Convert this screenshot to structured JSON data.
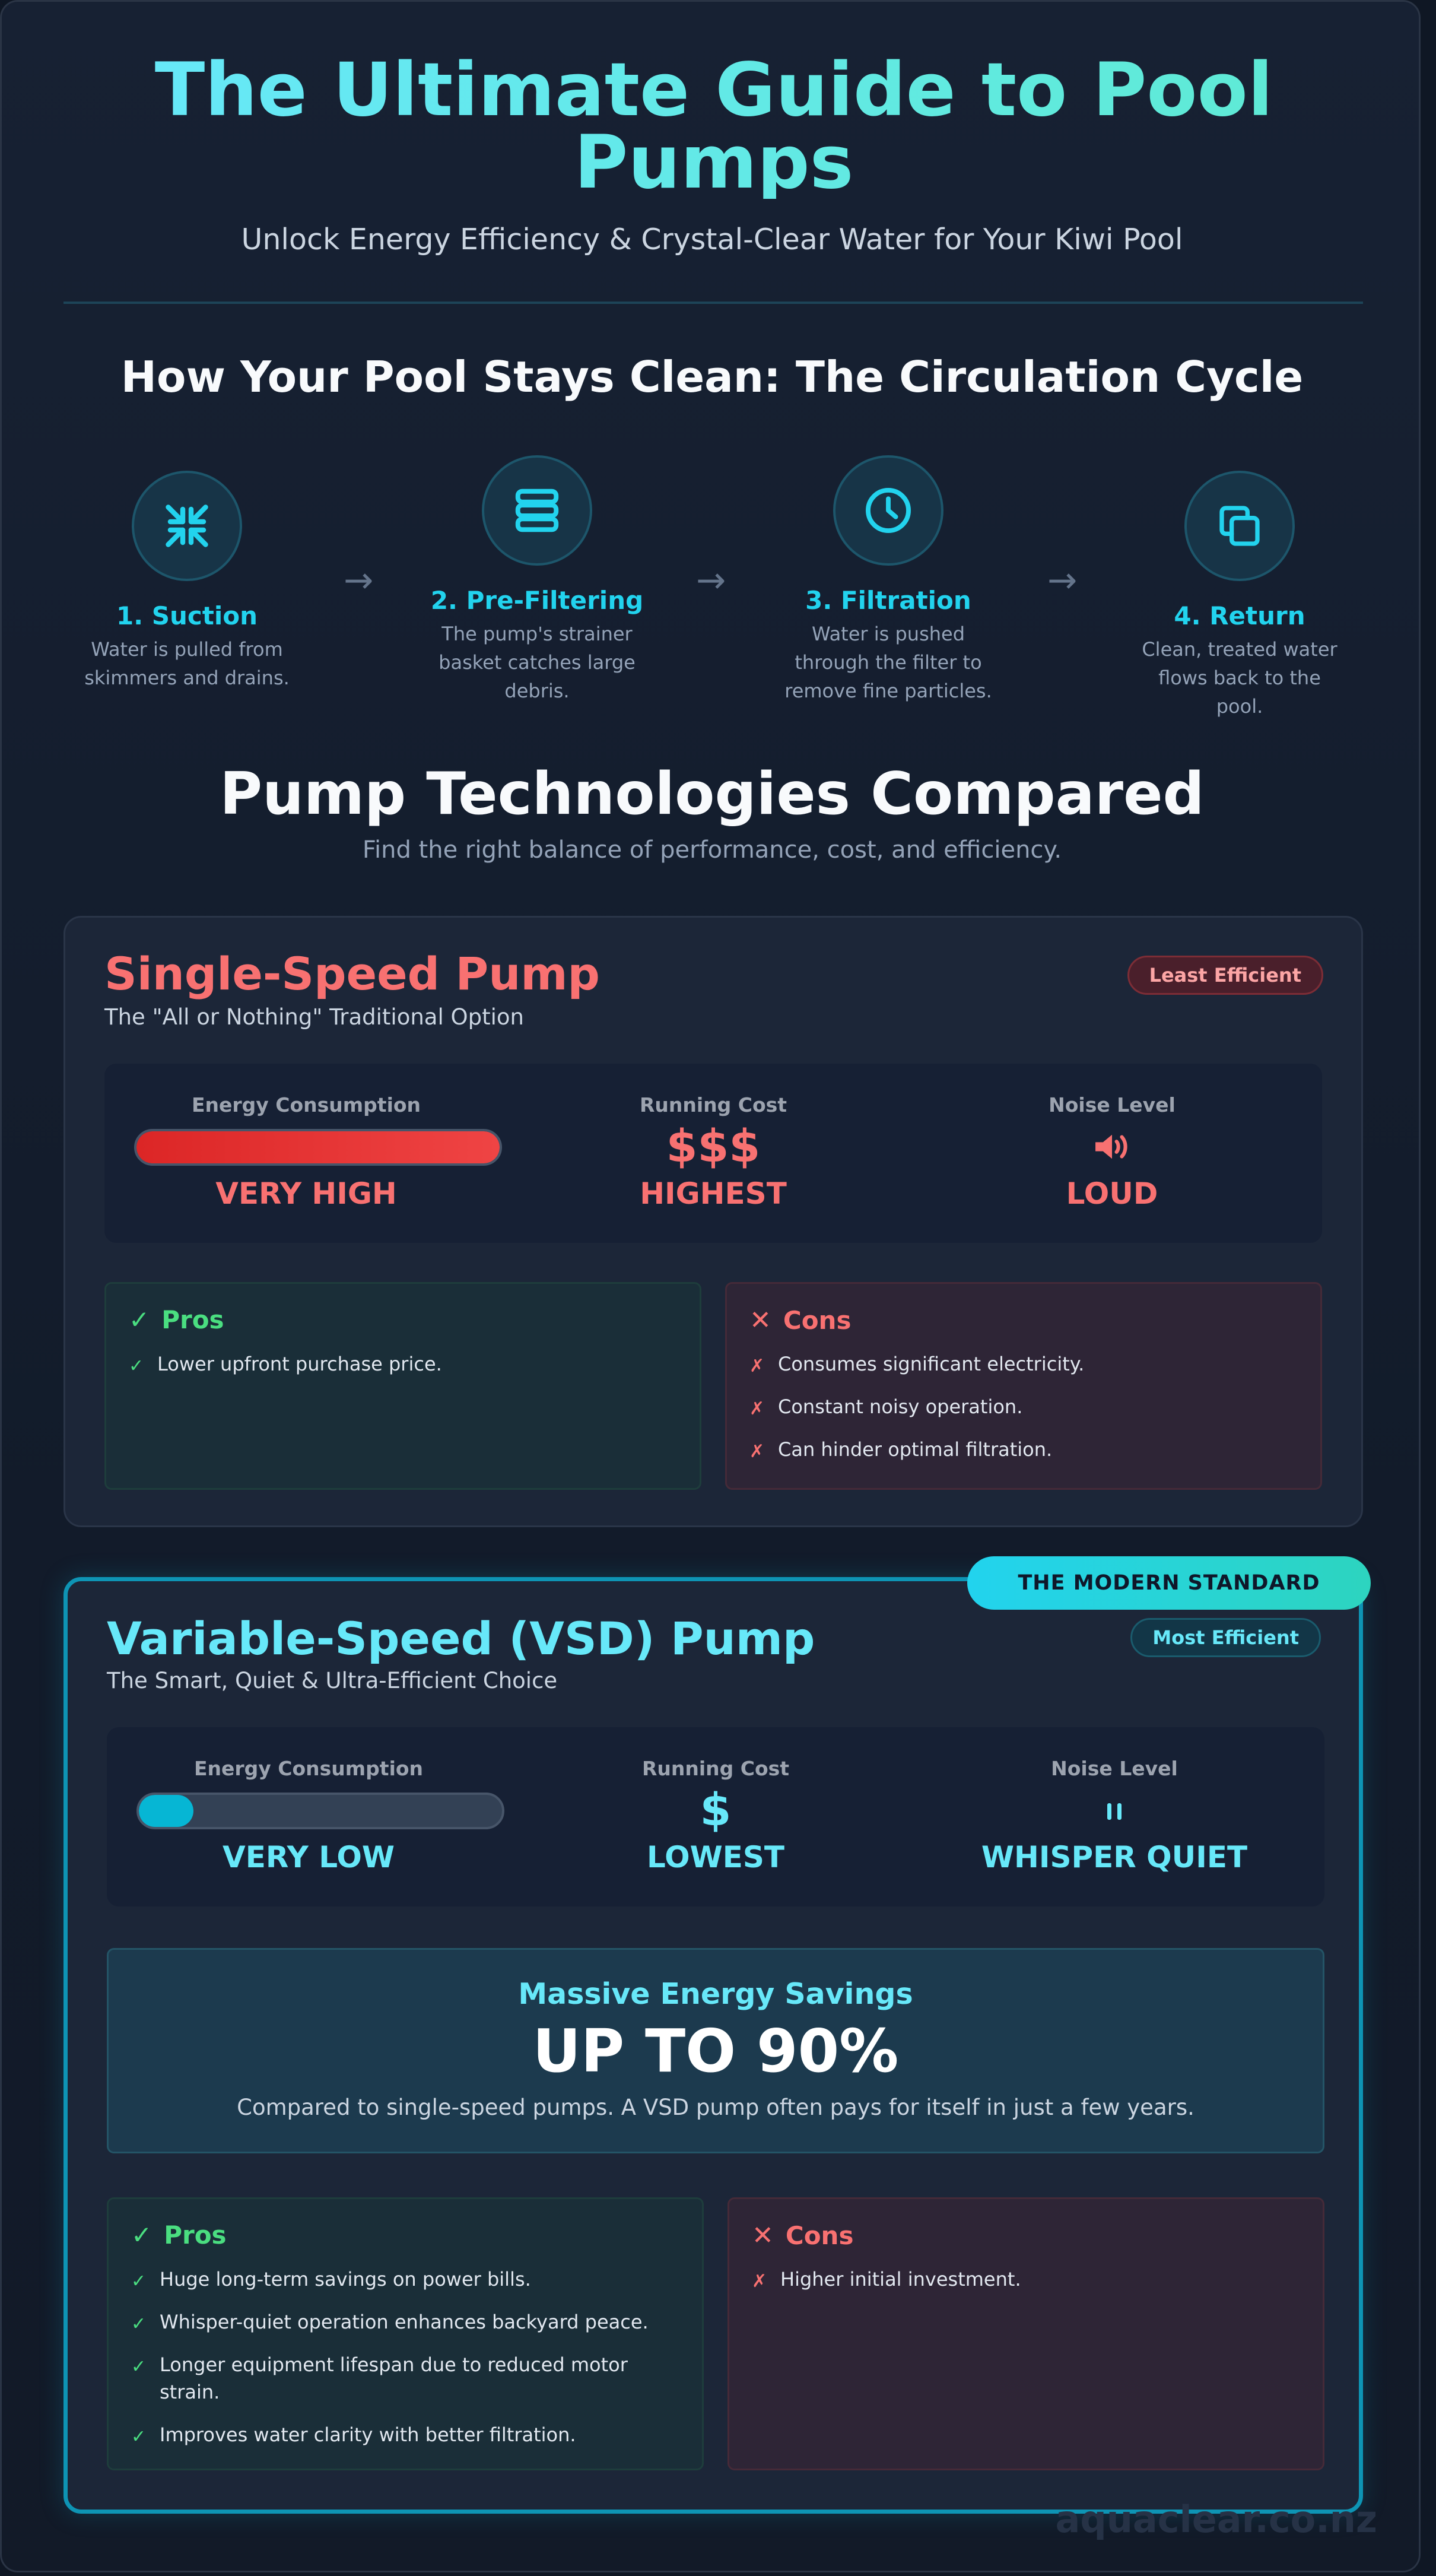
{
  "header": {
    "title": "The Ultimate Guide to Pool Pumps",
    "subtitle": "Unlock Energy Efficiency & Crystal-Clear Water for Your Kiwi Pool"
  },
  "cycle": {
    "title": "How Your Pool Stays Clean: The Circulation Cycle",
    "arrow": "→",
    "steps": [
      {
        "title": "1. Suction",
        "desc": "Water is pulled from skimmers and drains.",
        "icon": "compress-arrows-icon"
      },
      {
        "title": "2. Pre-Filtering",
        "desc": "The pump's strainer basket catches large debris.",
        "icon": "layers-icon"
      },
      {
        "title": "3. Filtration",
        "desc": "Water is pushed through the filter to remove fine particles.",
        "icon": "clock-icon"
      },
      {
        "title": "4. Return",
        "desc": "Clean, treated water flows back to the pool.",
        "icon": "copy-icon"
      }
    ]
  },
  "compare": {
    "title": "Pump Technologies Compared",
    "subtitle": "Find the right balance of performance, cost, and efficiency."
  },
  "single": {
    "name": "Single-Speed Pump",
    "tagline": "The \"All or Nothing\" Traditional Option",
    "badge": "Least Efficient",
    "accent": "#f87171",
    "metrics": {
      "energy_label": "Energy Consumption",
      "energy_level": 1.0,
      "energy_value": "VERY HIGH",
      "cost_label": "Running Cost",
      "cost_symbol": "$$$",
      "cost_value": "HIGHEST",
      "noise_label": "Noise Level",
      "noise_icon": "speaker-loud-icon",
      "noise_value": "LOUD"
    },
    "pros_title": "Pros",
    "pros": [
      "Lower upfront purchase price."
    ],
    "cons_title": "Cons",
    "cons": [
      "Consumes significant electricity.",
      "Constant noisy operation.",
      "Can hinder optimal filtration."
    ]
  },
  "vsd": {
    "ribbon": "THE MODERN STANDARD",
    "name": "Variable-Speed (VSD) Pump",
    "tagline": "The Smart, Quiet & Ultra-Efficient Choice",
    "badge": "Most Efficient",
    "accent": "#67e8f9",
    "metrics": {
      "energy_label": "Energy Consumption",
      "energy_level": 0.15,
      "energy_value": "VERY LOW",
      "cost_label": "Running Cost",
      "cost_symbol": "$",
      "cost_value": "LOWEST",
      "noise_label": "Noise Level",
      "noise_icon": "pause-quiet-icon",
      "noise_value": "WHISPER QUIET"
    },
    "savings": {
      "title": "Massive Energy Savings",
      "value": "UP TO 90%",
      "desc": "Compared to single-speed pumps. A VSD pump often pays for itself in just a few years."
    },
    "pros_title": "Pros",
    "pros": [
      "Huge long-term savings on power bills.",
      "Whisper-quiet operation enhances backyard peace.",
      "Longer equipment lifespan due to reduced motor strain.",
      "Improves water clarity with better filtration."
    ],
    "cons_title": "Cons",
    "cons": [
      "Higher initial investment."
    ]
  },
  "markers": {
    "check": "✓",
    "cross": "✗"
  },
  "footer": {
    "watermark": "aquaclear.co.nz"
  }
}
